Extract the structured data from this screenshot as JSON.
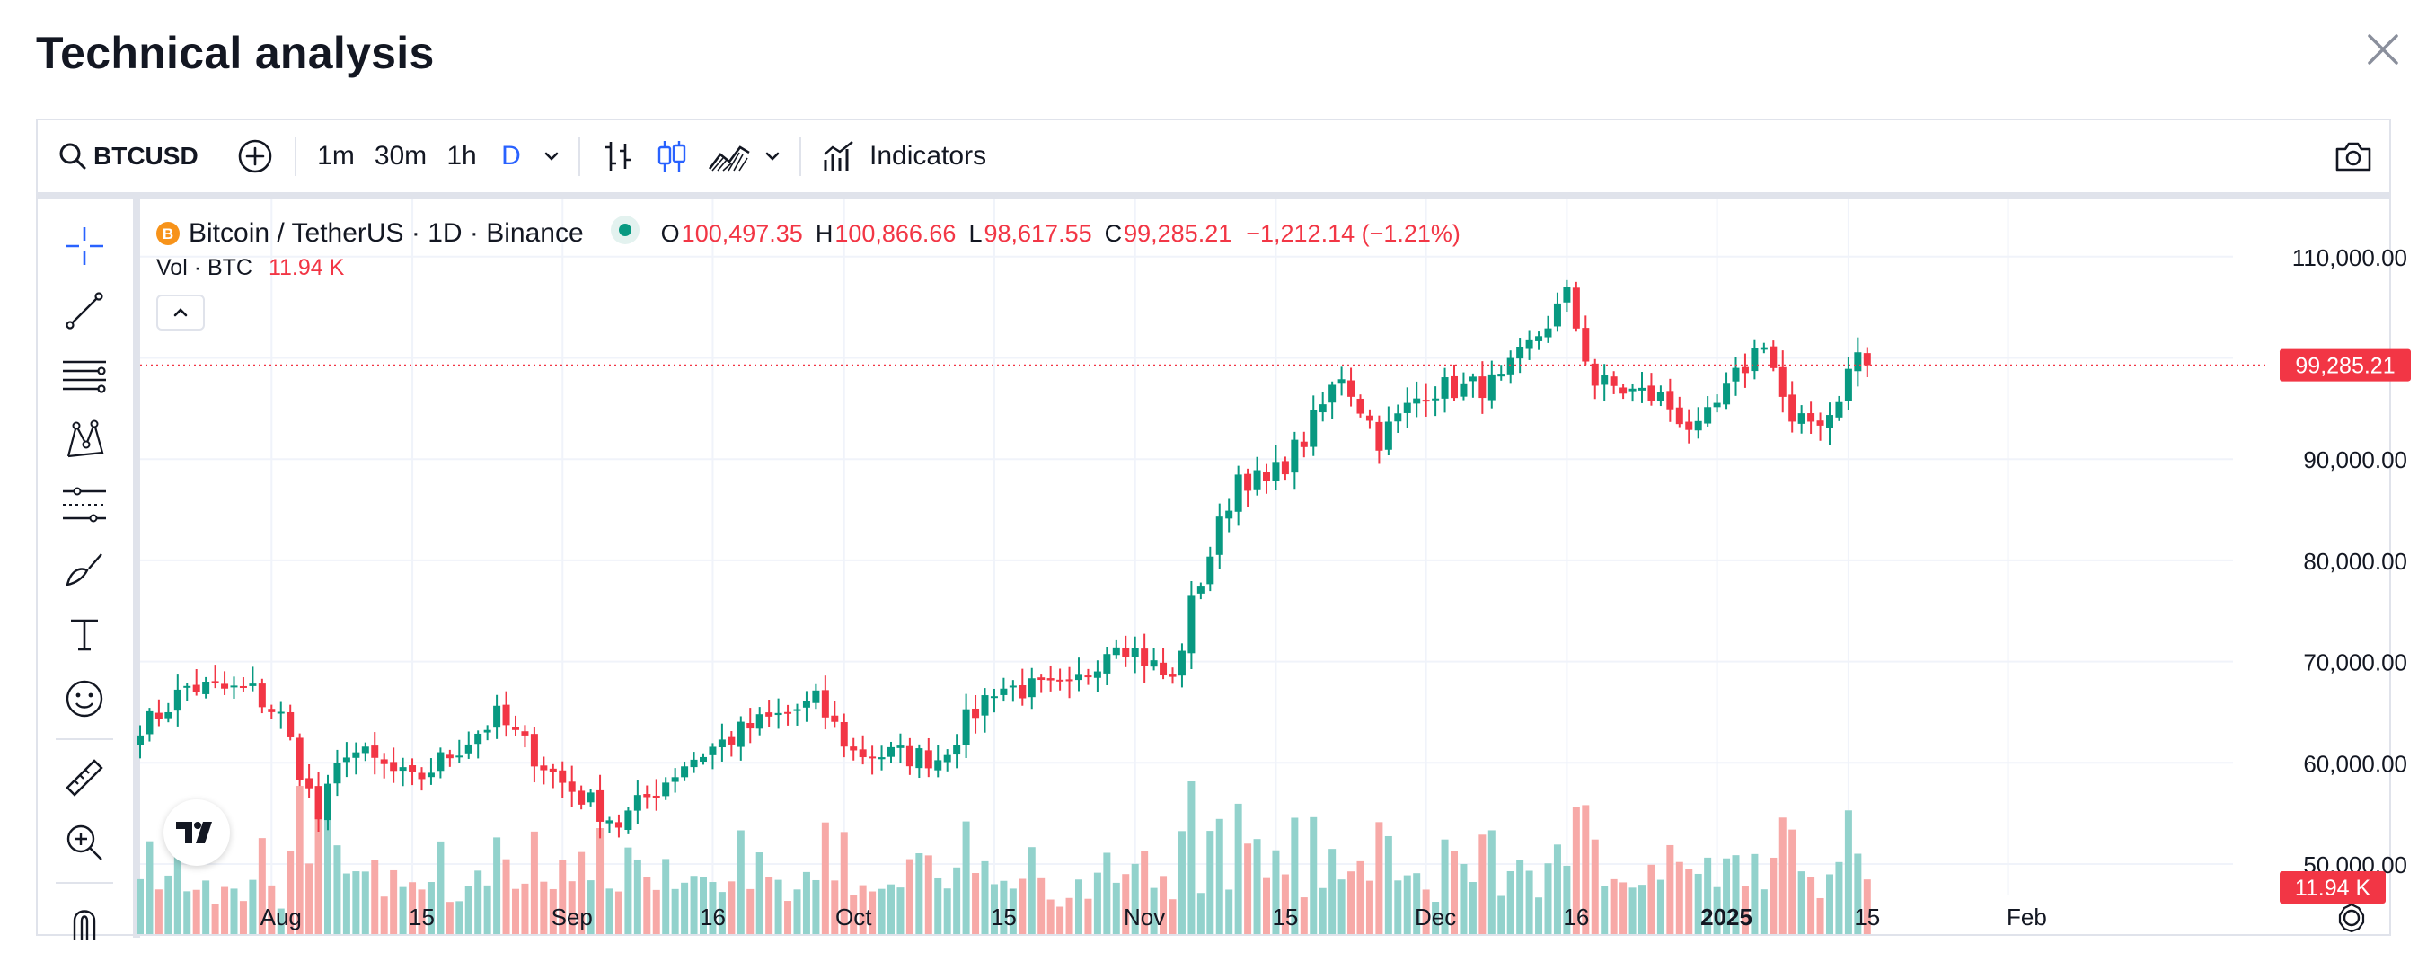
{
  "dialog": {
    "title": "Technical analysis"
  },
  "toolbar": {
    "symbol": "BTCUSD",
    "timeframes": [
      "1m",
      "30m",
      "1h",
      "D"
    ],
    "active_timeframe": "D",
    "indicators_label": "Indicators"
  },
  "legend": {
    "symbol_name": "Bitcoin / TetherUS · 1D · Binance",
    "open_key": "O",
    "open": "100,497.35",
    "high_key": "H",
    "high": "100,866.66",
    "low_key": "L",
    "low": "98,617.55",
    "close_key": "C",
    "close": "99,285.21",
    "change": "−1,212.14 (−1.21%)",
    "vol_label": "Vol · BTC",
    "vol_value": "11.94 K"
  },
  "price_axis": {
    "ticks": [
      "110,000.00",
      "90,000.00",
      "80,000.00",
      "70,000.00",
      "60,000.00",
      "50,000.00"
    ],
    "last_price_label": "99,285.21",
    "last_volume_label": "11.94 K"
  },
  "time_axis": {
    "labels": [
      "Aug",
      "15",
      "Sep",
      "16",
      "Oct",
      "15",
      "Nov",
      "15",
      "Dec",
      "16",
      "2025",
      "15",
      "Feb"
    ]
  },
  "chart_data": {
    "type": "candlestick",
    "symbol": "BTCUSD",
    "interval": "1D",
    "y_range": [
      50000,
      113000
    ],
    "last_close": 99285.21,
    "colors": {
      "up": "#089981",
      "down": "#f23645",
      "up_volume": "#92d2cc",
      "down_volume": "#f7a9a7"
    },
    "close_path": [
      [
        "Jul 18",
        64000
      ],
      [
        "Jul 22",
        67500
      ],
      [
        "Jul 29",
        67000
      ],
      [
        "Aug 1",
        64500
      ],
      [
        "Aug 5",
        54500
      ],
      [
        "Aug 8",
        61500
      ],
      [
        "Aug 15",
        58000
      ],
      [
        "Aug 24",
        64500
      ],
      [
        "Aug 31",
        58000
      ],
      [
        "Sep 6",
        54000
      ],
      [
        "Sep 13",
        60000
      ],
      [
        "Sep 20",
        63500
      ],
      [
        "Sep 27",
        66000
      ],
      [
        "Oct 1",
        61000
      ],
      [
        "Oct 10",
        60500
      ],
      [
        "Oct 16",
        67500
      ],
      [
        "Oct 24",
        67000
      ],
      [
        "Oct 29",
        72500
      ],
      [
        "Nov 4",
        68000
      ],
      [
        "Nov 6",
        75500
      ],
      [
        "Nov 11",
        88500
      ],
      [
        "Nov 14",
        87500
      ],
      [
        "Nov 18",
        92000
      ],
      [
        "Nov 22",
        98500
      ],
      [
        "Nov 26",
        92000
      ],
      [
        "Dec 1",
        97000
      ],
      [
        "Dec 5",
        97000
      ],
      [
        "Dec 9",
        97500
      ],
      [
        "Dec 16",
        106000
      ],
      [
        "Dec 19",
        97500
      ],
      [
        "Dec 26",
        96000
      ],
      [
        "Dec 30",
        92500
      ],
      [
        "Jan 6",
        102000
      ],
      [
        "Jan 9",
        93000
      ],
      [
        "Jan 13",
        94500
      ],
      [
        "Jan 16",
        100500
      ],
      [
        "Jan 17",
        99285.21
      ]
    ]
  }
}
